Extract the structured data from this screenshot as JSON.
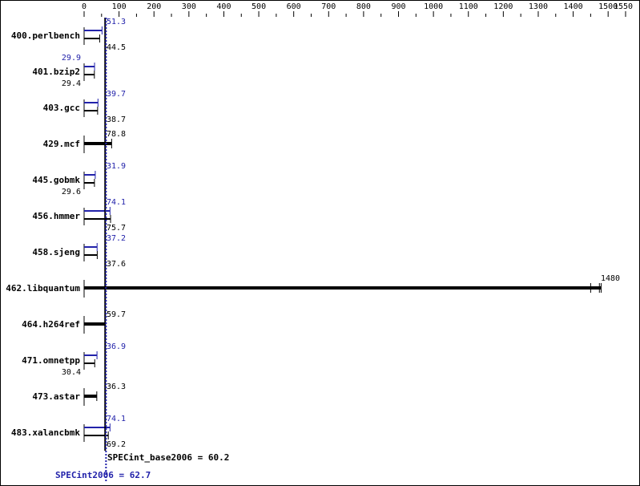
{
  "chart_data": {
    "type": "bar",
    "orientation": "horizontal",
    "xlim": [
      0,
      1550
    ],
    "x_ticks": [
      0,
      100,
      200,
      300,
      400,
      500,
      600,
      700,
      800,
      900,
      1000,
      1100,
      1200,
      1300,
      1400,
      1500,
      1550
    ],
    "categories": [
      "400.perlbench",
      "401.bzip2",
      "403.gcc",
      "429.mcf",
      "445.gobmk",
      "456.hmmer",
      "458.sjeng",
      "462.libquantum",
      "464.h264ref",
      "471.omnetpp",
      "473.astar",
      "483.xalancbmk"
    ],
    "series": [
      {
        "name": "SPECint2006",
        "color": "#2222aa",
        "values": [
          51.3,
          29.9,
          39.7,
          78.8,
          31.9,
          74.1,
          37.2,
          1480,
          59.7,
          36.9,
          36.3,
          74.1
        ]
      },
      {
        "name": "SPECint_base2006",
        "color": "#000000",
        "values": [
          44.5,
          29.4,
          38.7,
          78.8,
          29.6,
          75.7,
          37.6,
          1480,
          59.7,
          30.4,
          36.3,
          69.2
        ]
      }
    ],
    "same_peak_base": [
      false,
      false,
      false,
      true,
      false,
      false,
      false,
      true,
      true,
      false,
      true,
      false
    ],
    "means": {
      "base_label": "SPECint_base2006 = 60.2",
      "base_value": 60.2,
      "peak_label": "SPECint2006 = 62.7",
      "peak_value": 62.7
    },
    "grid": false
  }
}
